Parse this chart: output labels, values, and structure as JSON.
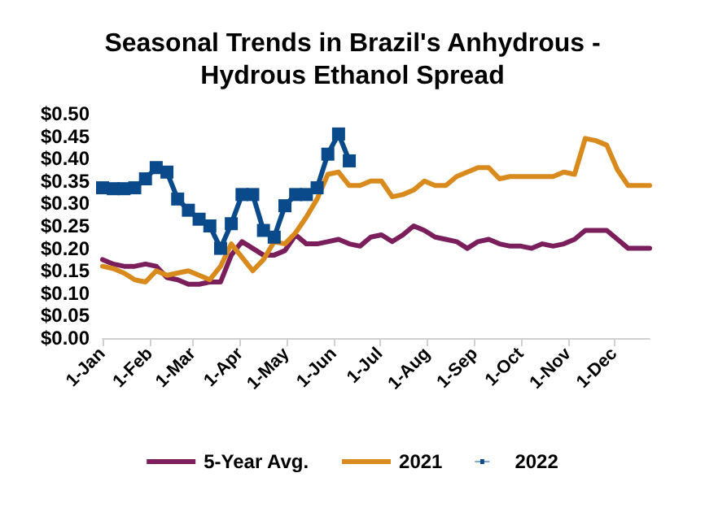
{
  "chart_data": {
    "type": "line",
    "title": "Seasonal Trends in Brazil's Anhydrous -\nHydrous Ethanol Spread",
    "x": [
      "--01-01",
      "--01-08",
      "--01-15",
      "--01-22",
      "--01-29",
      "--02-05",
      "--02-12",
      "--02-19",
      "--02-26",
      "--03-05",
      "--03-12",
      "--03-19",
      "--03-26",
      "--04-02",
      "--04-09",
      "--04-16",
      "--04-23",
      "--04-30",
      "--05-07",
      "--05-14",
      "--05-21",
      "--05-28",
      "--06-04",
      "--06-11",
      "--06-18",
      "--06-25",
      "--07-02",
      "--07-09",
      "--07-16",
      "--07-23",
      "--07-30",
      "--08-06",
      "--08-13",
      "--08-20",
      "--08-27",
      "--09-03",
      "--09-10",
      "--09-17",
      "--09-24",
      "--10-01",
      "--10-08",
      "--10-15",
      "--10-22",
      "--10-29",
      "--11-05",
      "--11-12",
      "--11-19",
      "--11-26",
      "--12-03",
      "--12-10",
      "--12-17",
      "--12-24"
    ],
    "series": [
      {
        "name": "5-Year Avg.",
        "color": "#7a1f5c",
        "marker": "none",
        "values": [
          0.175,
          0.165,
          0.16,
          0.16,
          0.165,
          0.16,
          0.135,
          0.13,
          0.12,
          0.12,
          0.125,
          0.125,
          0.185,
          0.215,
          0.2,
          0.185,
          0.185,
          0.195,
          0.23,
          0.21,
          0.21,
          0.215,
          0.22,
          0.21,
          0.205,
          0.225,
          0.23,
          0.215,
          0.23,
          0.25,
          0.24,
          0.225,
          0.22,
          0.215,
          0.2,
          0.215,
          0.22,
          0.21,
          0.205,
          0.205,
          0.2,
          0.21,
          0.205,
          0.21,
          0.22,
          0.24,
          0.24,
          0.24,
          0.22,
          0.2,
          0.2,
          0.2
        ]
      },
      {
        "name": "2021",
        "color": "#d98a1c",
        "marker": "none",
        "values": [
          0.16,
          0.155,
          0.145,
          0.13,
          0.125,
          0.15,
          0.14,
          0.145,
          0.15,
          0.14,
          0.13,
          0.16,
          0.21,
          0.18,
          0.15,
          0.175,
          0.215,
          0.21,
          0.235,
          0.27,
          0.31,
          0.365,
          0.37,
          0.34,
          0.34,
          0.35,
          0.35,
          0.315,
          0.32,
          0.33,
          0.35,
          0.34,
          0.34,
          0.36,
          0.37,
          0.38,
          0.38,
          0.355,
          0.36,
          0.36,
          0.36,
          0.36,
          0.36,
          0.37,
          0.365,
          0.445,
          0.44,
          0.43,
          0.375,
          0.34,
          0.34,
          0.34
        ]
      },
      {
        "name": "2022",
        "color": "#0a4a8a",
        "marker": "square",
        "values": [
          0.335,
          0.333,
          0.333,
          0.335,
          0.355,
          0.38,
          0.37,
          0.31,
          0.285,
          0.265,
          0.25,
          0.2,
          0.255,
          0.32,
          0.32,
          0.24,
          0.225,
          0.295,
          0.32,
          0.32,
          0.335,
          0.41,
          0.455,
          0.395,
          null,
          null,
          null,
          null,
          null,
          null,
          null,
          null,
          null,
          null,
          null,
          null,
          null,
          null,
          null,
          null,
          null,
          null,
          null,
          null,
          null,
          null,
          null,
          null,
          null,
          null,
          null,
          null
        ]
      }
    ],
    "xlim": [
      "--01-01",
      "--12-24"
    ],
    "xticks": [
      {
        "value": "--01-01",
        "label": "1-Jan"
      },
      {
        "value": "--02-01",
        "label": "1-Feb"
      },
      {
        "value": "--03-01",
        "label": "1-Mar"
      },
      {
        "value": "--04-01",
        "label": "1-Apr"
      },
      {
        "value": "--05-01",
        "label": "1-May"
      },
      {
        "value": "--06-01",
        "label": "1-Jun"
      },
      {
        "value": "--07-01",
        "label": "1-Jul"
      },
      {
        "value": "--08-01",
        "label": "1-Aug"
      },
      {
        "value": "--09-01",
        "label": "1-Sep"
      },
      {
        "value": "--10-01",
        "label": "1-Oct"
      },
      {
        "value": "--11-01",
        "label": "1-Nov"
      },
      {
        "value": "--12-01",
        "label": "1-Dec"
      }
    ],
    "ylim": [
      0,
      0.5
    ],
    "yticks": [
      {
        "value": 0,
        "label": "$0.00"
      },
      {
        "value": 0.05,
        "label": "$0.05"
      },
      {
        "value": 0.1,
        "label": "$0.10"
      },
      {
        "value": 0.15,
        "label": "$0.15"
      },
      {
        "value": 0.2,
        "label": "$0.20"
      },
      {
        "value": 0.25,
        "label": "$0.25"
      },
      {
        "value": 0.3,
        "label": "$0.30"
      },
      {
        "value": 0.35,
        "label": "$0.35"
      },
      {
        "value": 0.4,
        "label": "$0.40"
      },
      {
        "value": 0.45,
        "label": "$0.45"
      },
      {
        "value": 0.5,
        "label": "$0.50"
      }
    ],
    "grid": false,
    "legend": "bottom",
    "line_style": "solid"
  }
}
